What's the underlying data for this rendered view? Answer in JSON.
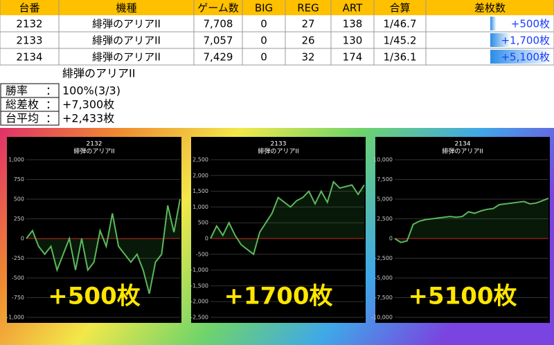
{
  "table": {
    "header": [
      "台番",
      "機種",
      "ゲーム数",
      "BIG",
      "REG",
      "ART",
      "合算",
      "差枚数"
    ],
    "rows": [
      [
        "2132",
        "緋弾のアリアII",
        "7,708",
        "0",
        "27",
        "138",
        "1/46.7",
        {
          "value": 500,
          "label": "+500枚"
        }
      ],
      [
        "2133",
        "緋弾のアリアII",
        "7,057",
        "0",
        "26",
        "130",
        "1/45.2",
        {
          "value": 1700,
          "label": "+1,700枚"
        }
      ],
      [
        "2134",
        "緋弾のアリアII",
        "7,429",
        "0",
        "32",
        "174",
        "1/36.1",
        {
          "value": 5100,
          "label": "+5,100枚"
        }
      ]
    ]
  },
  "summary": {
    "title": "緋弾のアリアII",
    "rows": [
      {
        "label": "勝率",
        "sep": "：",
        "value": "100%(3/3)"
      },
      {
        "label": "総差枚",
        "sep": "：",
        "value": "+7,300枚"
      },
      {
        "label": "台平均",
        "sep": "：",
        "value": "+2,433枚"
      }
    ]
  },
  "chart_data": [
    {
      "type": "line",
      "title": "2132",
      "subtitle": "緋弾のアリアII",
      "annotation": "+500枚",
      "color": "#5cb85c",
      "grid": true,
      "ylim": [
        -1000,
        1000
      ],
      "yticks": [
        {
          "value": 1000,
          "label": "1,000"
        },
        750,
        500,
        250,
        0,
        -250,
        -500,
        -750,
        {
          "value": -1000,
          "label": "-1,000"
        }
      ],
      "values": [
        0,
        100,
        -100,
        -200,
        -100,
        -400,
        -200,
        0,
        -400,
        0,
        -400,
        -300,
        100,
        -100,
        320,
        -100,
        -200,
        -300,
        -200,
        -400,
        -700,
        -300,
        -200,
        420,
        80,
        500
      ]
    },
    {
      "type": "line",
      "title": "2133",
      "subtitle": "緋弾のアリアII",
      "annotation": "+1700枚",
      "color": "#5cb85c",
      "grid": true,
      "ylim": [
        -2500,
        2500
      ],
      "yticks": [
        {
          "value": 2500,
          "label": "2,500"
        },
        {
          "value": 2000,
          "label": "2,000"
        },
        {
          "value": 1500,
          "label": "1,500"
        },
        {
          "value": 1000,
          "label": "1,000"
        },
        500,
        0,
        -500,
        {
          "value": -1000,
          "label": "-1,000"
        },
        {
          "value": -1500,
          "label": "-1,500"
        },
        {
          "value": -2000,
          "label": "-2,000"
        },
        {
          "value": -2500,
          "label": "-2,500"
        }
      ],
      "values": [
        0,
        400,
        100,
        500,
        100,
        -200,
        -350,
        -500,
        200,
        500,
        800,
        1300,
        1150,
        1000,
        1200,
        1300,
        1500,
        1100,
        1500,
        1150,
        1800,
        1600,
        1650,
        1700,
        1400,
        1700
      ]
    },
    {
      "type": "line",
      "title": "2134",
      "subtitle": "緋弾のアリアII",
      "annotation": "+5100枚",
      "color": "#5cb85c",
      "grid": true,
      "ylim": [
        -10000,
        10000
      ],
      "yticks": [
        {
          "value": 10000,
          "label": "10,000"
        },
        {
          "value": 7500,
          "label": "7,500"
        },
        {
          "value": 5000,
          "label": "5,000"
        },
        {
          "value": 2500,
          "label": "2,500"
        },
        0,
        {
          "value": -2500,
          "label": "-2,500"
        },
        {
          "value": -5000,
          "label": "-5,000"
        },
        {
          "value": -7500,
          "label": "-7,500"
        },
        {
          "value": -10000,
          "label": "-10,000"
        }
      ],
      "values": [
        0,
        -500,
        -300,
        1800,
        2200,
        2400,
        2500,
        2600,
        2700,
        2800,
        2700,
        2800,
        3400,
        3200,
        3500,
        3700,
        3800,
        4300,
        4400,
        4500,
        4600,
        4700,
        4400,
        4500,
        4800,
        5100
      ]
    }
  ]
}
